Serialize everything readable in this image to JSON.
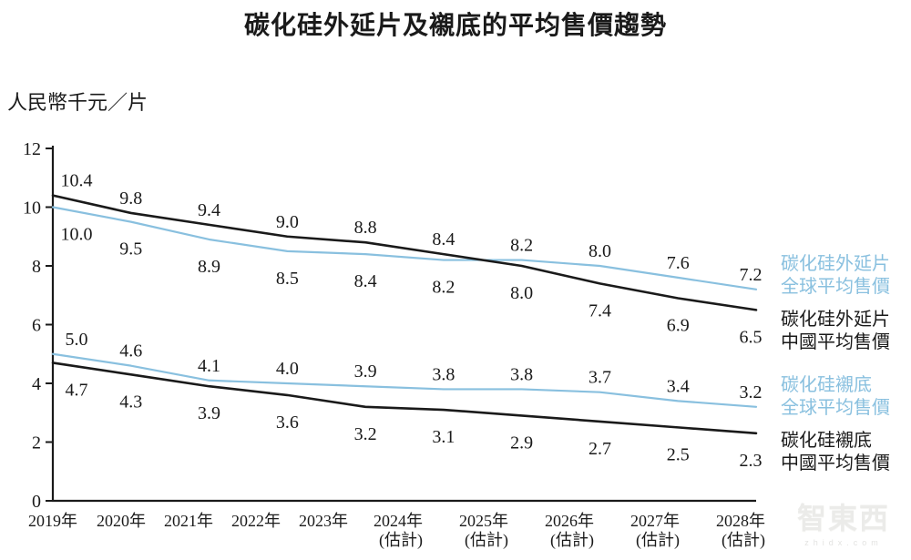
{
  "title": "碳化硅外延片及襯底的平均售價趨勢",
  "y_axis_unit": "人民幣千元／片",
  "watermark": {
    "logo": "智東西",
    "domain": "zhidx.com"
  },
  "chart_data": {
    "type": "line",
    "title": "碳化硅外延片及襯底的平均售價趨勢",
    "ylabel": "人民幣千元／片",
    "ylim": [
      0,
      12
    ],
    "y_ticks": [
      0,
      2,
      4,
      6,
      8,
      10,
      12
    ],
    "grid": false,
    "legend_position": "right",
    "x_labels": [
      "2019年",
      "2020年",
      "2021年",
      "2022年",
      "2023年",
      "2024年",
      "2025年",
      "2026年",
      "2027年",
      "2028年"
    ],
    "x_notes": [
      "",
      "",
      "",
      "",
      "",
      "(估計)",
      "(估計)",
      "(估計)",
      "(估計)",
      "(估計)"
    ],
    "series": [
      {
        "name": "碳化硅外延片全球平均售價",
        "legend_lines": [
          "碳化硅外延片",
          "全球平均售價"
        ],
        "color": "#89C0DF",
        "values": [
          10.0,
          9.5,
          8.9,
          8.5,
          8.4,
          8.2,
          8.2,
          8.0,
          7.6,
          7.2
        ]
      },
      {
        "name": "碳化硅外延片中國平均售價",
        "legend_lines": [
          "碳化硅外延片",
          "中國平均售價"
        ],
        "color": "#1A1A1A",
        "values": [
          10.4,
          9.8,
          9.4,
          9.0,
          8.8,
          8.4,
          8.0,
          7.4,
          6.9,
          6.5
        ]
      },
      {
        "name": "碳化硅襯底全球平均售價",
        "legend_lines": [
          "碳化硅襯底",
          "全球平均售價"
        ],
        "color": "#89C0DF",
        "values": [
          5.0,
          4.6,
          4.1,
          4.0,
          3.9,
          3.8,
          3.8,
          3.7,
          3.4,
          3.2
        ]
      },
      {
        "name": "碳化硅襯底中國平均售價",
        "legend_lines": [
          "碳化硅襯底",
          "中國平均售價"
        ],
        "color": "#1A1A1A",
        "values": [
          4.7,
          4.3,
          3.9,
          3.6,
          3.2,
          3.1,
          2.9,
          2.7,
          2.5,
          2.3
        ]
      }
    ],
    "pairs": [
      [
        0,
        1
      ],
      [
        2,
        3
      ]
    ]
  }
}
